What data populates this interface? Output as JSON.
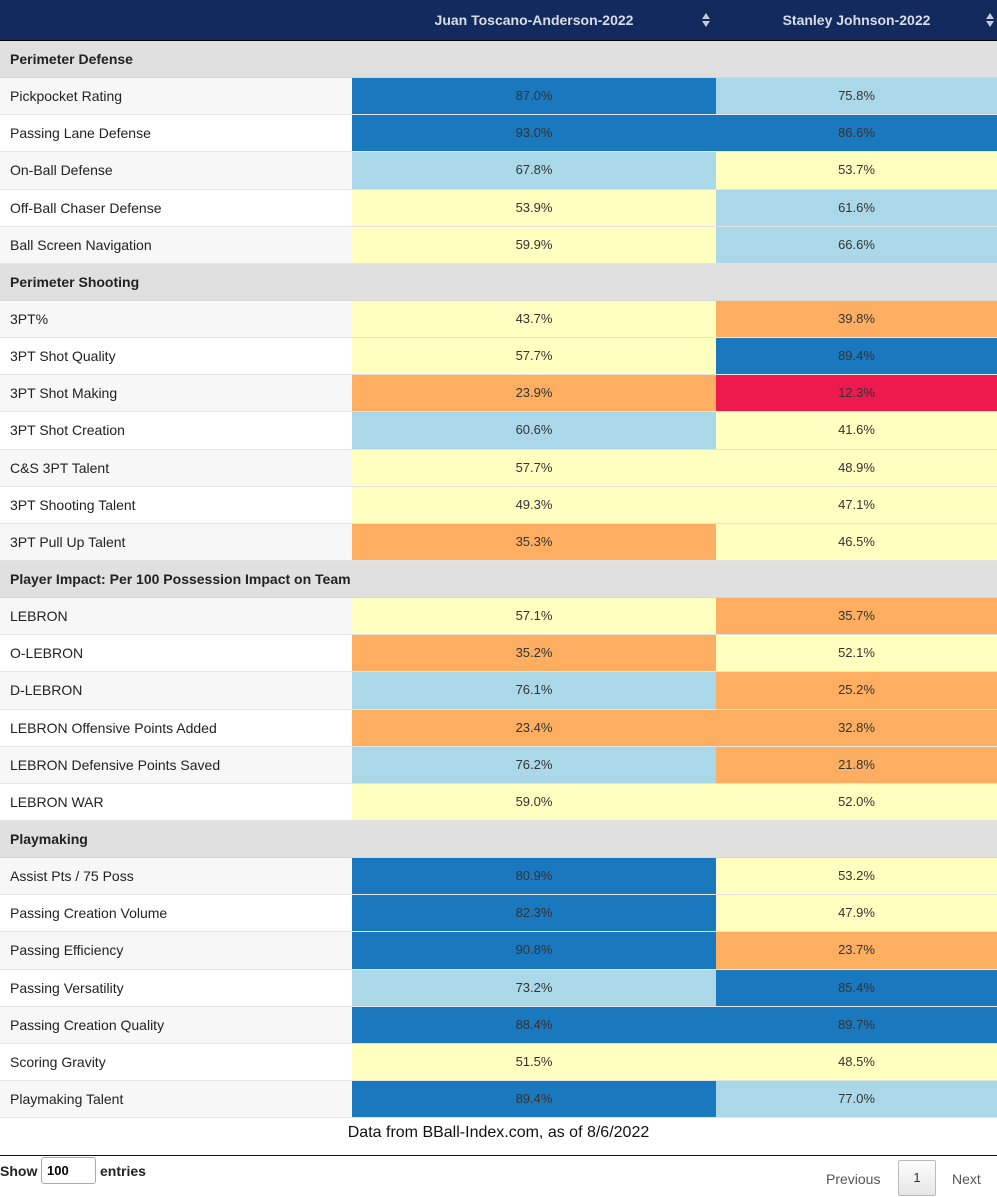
{
  "header": {
    "columns": [
      "",
      "Juan Toscano-Anderson-2022",
      "Stanley Johnson-2022"
    ]
  },
  "colors": {
    "header_bg": "#122a5e",
    "dark_blue": "#1a78bf",
    "light_blue": "#abd8e9",
    "light_yellow": "#ffffc0",
    "orange": "#fdae61",
    "red": "#ee1a4f",
    "group_bg": "#e0e0e0"
  },
  "rows": [
    {
      "group": "Perimeter Defense"
    },
    {
      "name": "Pickpocket Rating",
      "v1": "87.0%",
      "c1": "dark_blue",
      "v2": "75.8%",
      "c2": "light_blue"
    },
    {
      "name": "Passing Lane Defense",
      "v1": "93.0%",
      "c1": "dark_blue",
      "v2": "86.6%",
      "c2": "dark_blue"
    },
    {
      "name": "On-Ball Defense",
      "v1": "67.8%",
      "c1": "light_blue",
      "v2": "53.7%",
      "c2": "light_yellow"
    },
    {
      "name": "Off-Ball Chaser Defense",
      "v1": "53.9%",
      "c1": "light_yellow",
      "v2": "61.6%",
      "c2": "light_blue"
    },
    {
      "name": "Ball Screen Navigation",
      "v1": "59.9%",
      "c1": "light_yellow",
      "v2": "66.6%",
      "c2": "light_blue"
    },
    {
      "group": "Perimeter Shooting"
    },
    {
      "name": "3PT%",
      "v1": "43.7%",
      "c1": "light_yellow",
      "v2": "39.8%",
      "c2": "orange"
    },
    {
      "name": "3PT Shot Quality",
      "v1": "57.7%",
      "c1": "light_yellow",
      "v2": "89.4%",
      "c2": "dark_blue"
    },
    {
      "name": "3PT Shot Making",
      "v1": "23.9%",
      "c1": "orange",
      "v2": "12.3%",
      "c2": "red"
    },
    {
      "name": "3PT Shot Creation",
      "v1": "60.6%",
      "c1": "light_blue",
      "v2": "41.6%",
      "c2": "light_yellow"
    },
    {
      "name": "C&S 3PT Talent",
      "v1": "57.7%",
      "c1": "light_yellow",
      "v2": "48.9%",
      "c2": "light_yellow"
    },
    {
      "name": "3PT Shooting Talent",
      "v1": "49.3%",
      "c1": "light_yellow",
      "v2": "47.1%",
      "c2": "light_yellow"
    },
    {
      "name": "3PT Pull Up Talent",
      "v1": "35.3%",
      "c1": "orange",
      "v2": "46.5%",
      "c2": "light_yellow"
    },
    {
      "group": "Player Impact: Per 100 Possession Impact on Team"
    },
    {
      "name": "LEBRON",
      "v1": "57.1%",
      "c1": "light_yellow",
      "v2": "35.7%",
      "c2": "orange"
    },
    {
      "name": "O-LEBRON",
      "v1": "35.2%",
      "c1": "orange",
      "v2": "52.1%",
      "c2": "light_yellow"
    },
    {
      "name": "D-LEBRON",
      "v1": "76.1%",
      "c1": "light_blue",
      "v2": "25.2%",
      "c2": "orange"
    },
    {
      "name": "LEBRON Offensive Points Added",
      "v1": "23.4%",
      "c1": "orange",
      "v2": "32.8%",
      "c2": "orange"
    },
    {
      "name": "LEBRON Defensive Points Saved",
      "v1": "76.2%",
      "c1": "light_blue",
      "v2": "21.8%",
      "c2": "orange"
    },
    {
      "name": "LEBRON WAR",
      "v1": "59.0%",
      "c1": "light_yellow",
      "v2": "52.0%",
      "c2": "light_yellow"
    },
    {
      "group": "Playmaking"
    },
    {
      "name": "Assist Pts / 75 Poss",
      "v1": "80.9%",
      "c1": "dark_blue",
      "v2": "53.2%",
      "c2": "light_yellow"
    },
    {
      "name": "Passing Creation Volume",
      "v1": "82.3%",
      "c1": "dark_blue",
      "v2": "47.9%",
      "c2": "light_yellow"
    },
    {
      "name": "Passing Efficiency",
      "v1": "90.8%",
      "c1": "dark_blue",
      "v2": "23.7%",
      "c2": "orange"
    },
    {
      "name": "Passing Versatility",
      "v1": "73.2%",
      "c1": "light_blue",
      "v2": "85.4%",
      "c2": "dark_blue"
    },
    {
      "name": "Passing Creation Quality",
      "v1": "88.4%",
      "c1": "dark_blue",
      "v2": "89.7%",
      "c2": "dark_blue"
    },
    {
      "name": "Scoring Gravity",
      "v1": "51.5%",
      "c1": "light_yellow",
      "v2": "48.5%",
      "c2": "light_yellow"
    },
    {
      "name": "Playmaking Talent",
      "v1": "89.4%",
      "c1": "dark_blue",
      "v2": "77.0%",
      "c2": "light_blue"
    }
  ],
  "caption": "Data from BBall-Index.com, as of 8/6/2022",
  "footer": {
    "show_label": "Show",
    "entries_value": "100",
    "entries_label": "entries",
    "previous_label": "Previous",
    "page_number": "1",
    "next_label": "Next"
  }
}
